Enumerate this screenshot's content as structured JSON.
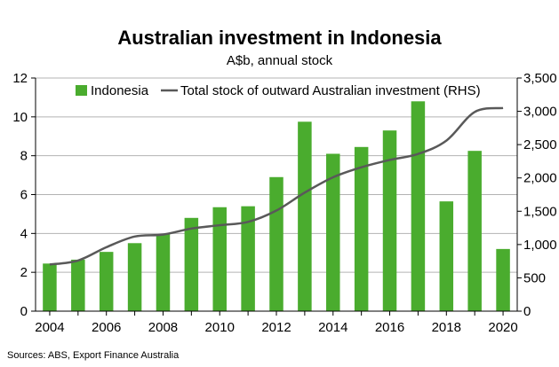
{
  "header": {
    "title": "Australian investment in Indonesia",
    "subtitle": "A$b, annual stock"
  },
  "footer": {
    "source": "Sources: ABS, Export Finance Australia"
  },
  "chart_data": {
    "type": "bar",
    "title": "Australian investment in Indonesia",
    "subtitle": "A$b, annual stock",
    "categories": [
      2004,
      2005,
      2006,
      2007,
      2008,
      2009,
      2010,
      2011,
      2012,
      2013,
      2014,
      2015,
      2016,
      2017,
      2018,
      2019,
      2020
    ],
    "x_tick_labels": [
      "2004",
      "2006",
      "2008",
      "2010",
      "2012",
      "2014",
      "2016",
      "2018",
      "2020"
    ],
    "series": [
      {
        "name": "Indonesia",
        "type": "bar",
        "axis": "left",
        "color": "#4aac2e",
        "values": [
          2.45,
          2.65,
          3.05,
          3.5,
          3.95,
          4.8,
          5.35,
          5.4,
          6.9,
          9.75,
          8.1,
          8.45,
          9.3,
          10.8,
          5.65,
          8.25,
          3.2
        ]
      },
      {
        "name": "Total stock of outward Australian investment (RHS)",
        "type": "line",
        "axis": "right",
        "color": "#595959",
        "values": [
          700,
          760,
          960,
          1120,
          1150,
          1240,
          1290,
          1340,
          1510,
          1780,
          2010,
          2160,
          2270,
          2360,
          2560,
          2990,
          3050
        ]
      }
    ],
    "y_left": {
      "min": 0,
      "max": 12,
      "ticks": [
        "0",
        "2",
        "4",
        "6",
        "8",
        "10",
        "12"
      ]
    },
    "y_right": {
      "min": 0,
      "max": 3500,
      "ticks": [
        "0",
        "500",
        "1,000",
        "1,500",
        "2,000",
        "2,500",
        "3,000",
        "3,500"
      ]
    },
    "grid": "horizontal",
    "legend": "top"
  }
}
